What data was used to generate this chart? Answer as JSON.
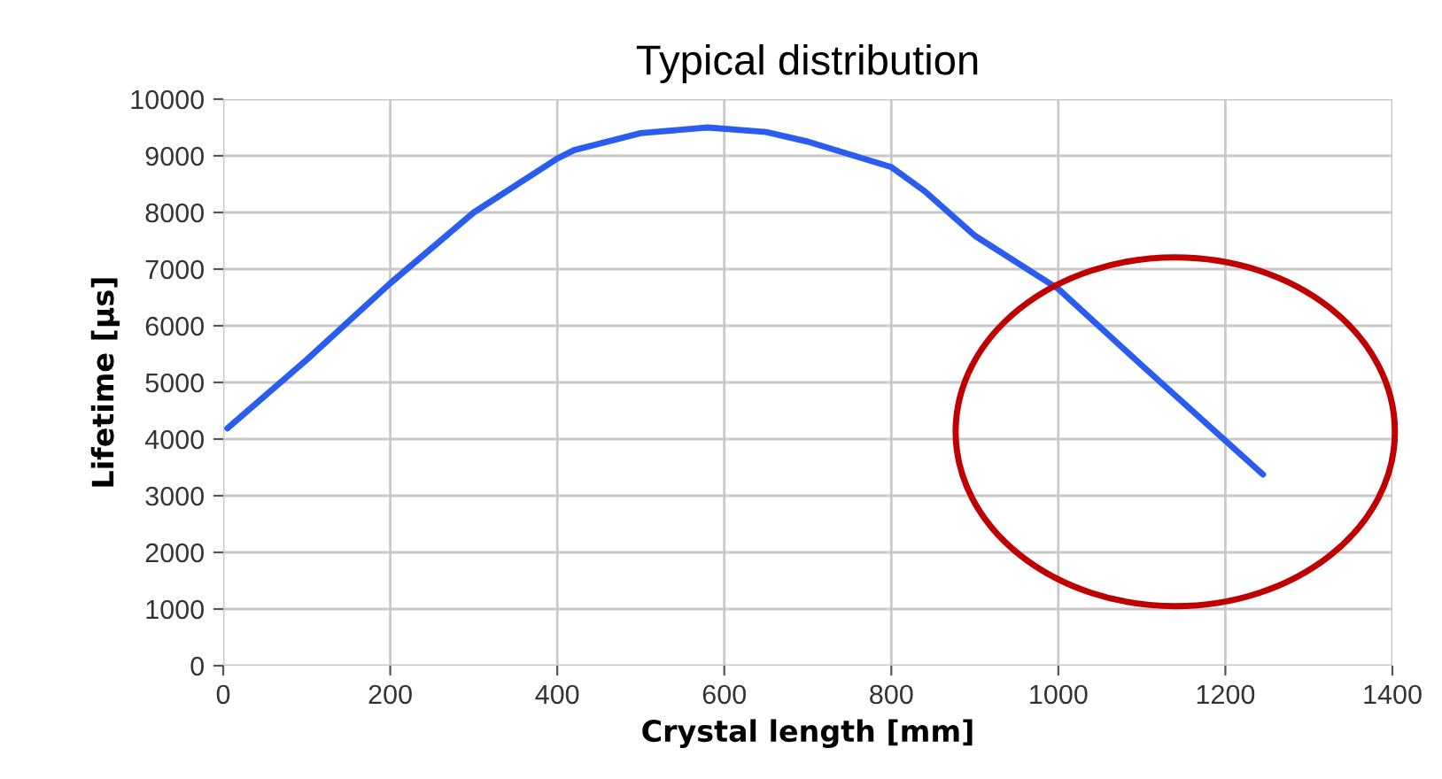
{
  "chart_data": {
    "type": "line",
    "title": "Typical distribution",
    "xlabel": "Crystal length [mm]",
    "ylabel": "Lifetime [µs]",
    "x": [
      5,
      100,
      200,
      300,
      400,
      420,
      500,
      580,
      650,
      700,
      800,
      840,
      900,
      1000,
      1100,
      1245
    ],
    "series": [
      {
        "color": "#2a5cf0",
        "values": [
          4190,
          5400,
          6750,
          8000,
          8950,
          9100,
          9400,
          9500,
          9420,
          9250,
          8800,
          8375,
          7590,
          6650,
          5300,
          3375
        ]
      }
    ],
    "xlim": [
      0,
      1400
    ],
    "xticks": [
      0,
      200,
      400,
      600,
      800,
      1000,
      1200,
      1400
    ],
    "ylim": [
      0,
      10000
    ],
    "yticks": [
      0,
      1000,
      2000,
      3000,
      4000,
      5000,
      6000,
      7000,
      8000,
      9000,
      10000
    ],
    "grid": true,
    "marker": "none",
    "line_style": "solid"
  }
}
